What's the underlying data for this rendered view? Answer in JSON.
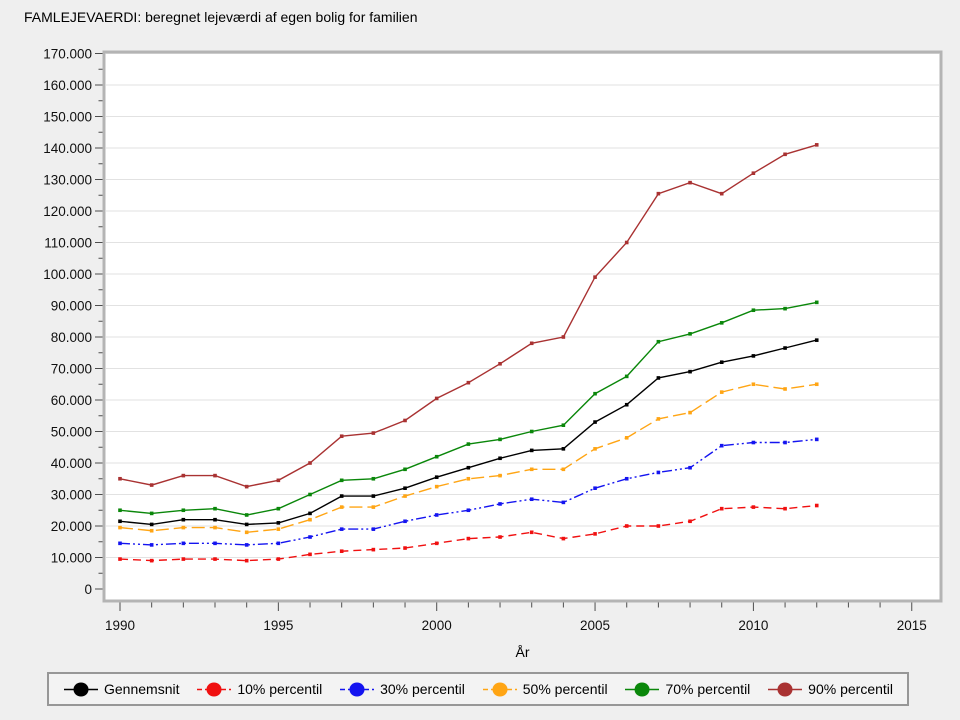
{
  "title": "FAMLEJEVAERDI: beregnet lejeværdi af egen bolig for familien",
  "chart_data": {
    "type": "line",
    "title": "FAMLEJEVAERDI: beregnet lejeværdi af egen bolig for familien",
    "xlabel": "År",
    "ylabel": "",
    "grid": "horizontal",
    "legend_position": "bottom",
    "x": [
      1990,
      1991,
      1992,
      1993,
      1994,
      1995,
      1996,
      1997,
      1998,
      1999,
      2000,
      2001,
      2002,
      2003,
      2004,
      2005,
      2006,
      2007,
      2008,
      2009,
      2010,
      2011,
      2012
    ],
    "xlim": [
      1989.5,
      2016
    ],
    "ylim": [
      0,
      170000
    ],
    "x_tick_labels": [
      "1990",
      "1995",
      "2000",
      "2005",
      "2010",
      "2015"
    ],
    "x_major_ticks": [
      1990,
      1995,
      2000,
      2005,
      2010,
      2015
    ],
    "y_tick_step": 10000,
    "y_minor_step": 5000,
    "y_tick_labels": [
      "0",
      "10.000",
      "20.000",
      "30.000",
      "40.000",
      "50.000",
      "60.000",
      "70.000",
      "80.000",
      "90.000",
      "100.000",
      "110.000",
      "120.000",
      "130.000",
      "140.000",
      "150.000",
      "160.000",
      "170.000"
    ],
    "series": [
      {
        "name": "Gennemsnit",
        "color": "#000000",
        "dash": "solid",
        "values": [
          21500,
          20500,
          22000,
          22000,
          20500,
          21000,
          24000,
          29500,
          29500,
          32000,
          35500,
          38500,
          41500,
          44000,
          44500,
          53000,
          58500,
          67000,
          69000,
          72000,
          74000,
          76500,
          79000
        ]
      },
      {
        "name": "10% percentil",
        "color": "#f01010",
        "dash": "dash",
        "values": [
          9500,
          9000,
          9500,
          9500,
          9000,
          9500,
          11000,
          12000,
          12500,
          13000,
          14500,
          16000,
          16500,
          18000,
          16000,
          17500,
          20000,
          20000,
          21500,
          25500,
          26000,
          25500,
          26500
        ]
      },
      {
        "name": "30% percentil",
        "color": "#1414f0",
        "dash": "dash-dot-dot",
        "values": [
          14500,
          14000,
          14500,
          14500,
          14000,
          14500,
          16500,
          19000,
          19000,
          21500,
          23500,
          25000,
          27000,
          28500,
          27500,
          32000,
          35000,
          37000,
          38500,
          45500,
          46500,
          46500,
          47500
        ]
      },
      {
        "name": "50% percentil",
        "color": "#ffa514",
        "dash": "long-dash",
        "values": [
          19500,
          18500,
          19500,
          19500,
          18000,
          19000,
          22000,
          26000,
          26000,
          29500,
          32500,
          35000,
          36000,
          38000,
          38000,
          44500,
          48000,
          54000,
          56000,
          62500,
          65000,
          63500,
          65000
        ]
      },
      {
        "name": "70% percentil",
        "color": "#0a870a",
        "dash": "solid",
        "values": [
          25000,
          24000,
          25000,
          25500,
          23500,
          25500,
          30000,
          34500,
          35000,
          38000,
          42000,
          46000,
          47500,
          50000,
          52000,
          62000,
          67500,
          78500,
          81000,
          84500,
          88500,
          89000,
          91000
        ]
      },
      {
        "name": "90% percentil",
        "color": "#a93232",
        "dash": "solid",
        "values": [
          35000,
          33000,
          36000,
          36000,
          32500,
          34500,
          40000,
          48500,
          49500,
          53500,
          60500,
          65500,
          71500,
          78000,
          80000,
          99000,
          110000,
          125500,
          129000,
          125500,
          132000,
          138000,
          141000
        ]
      }
    ]
  }
}
